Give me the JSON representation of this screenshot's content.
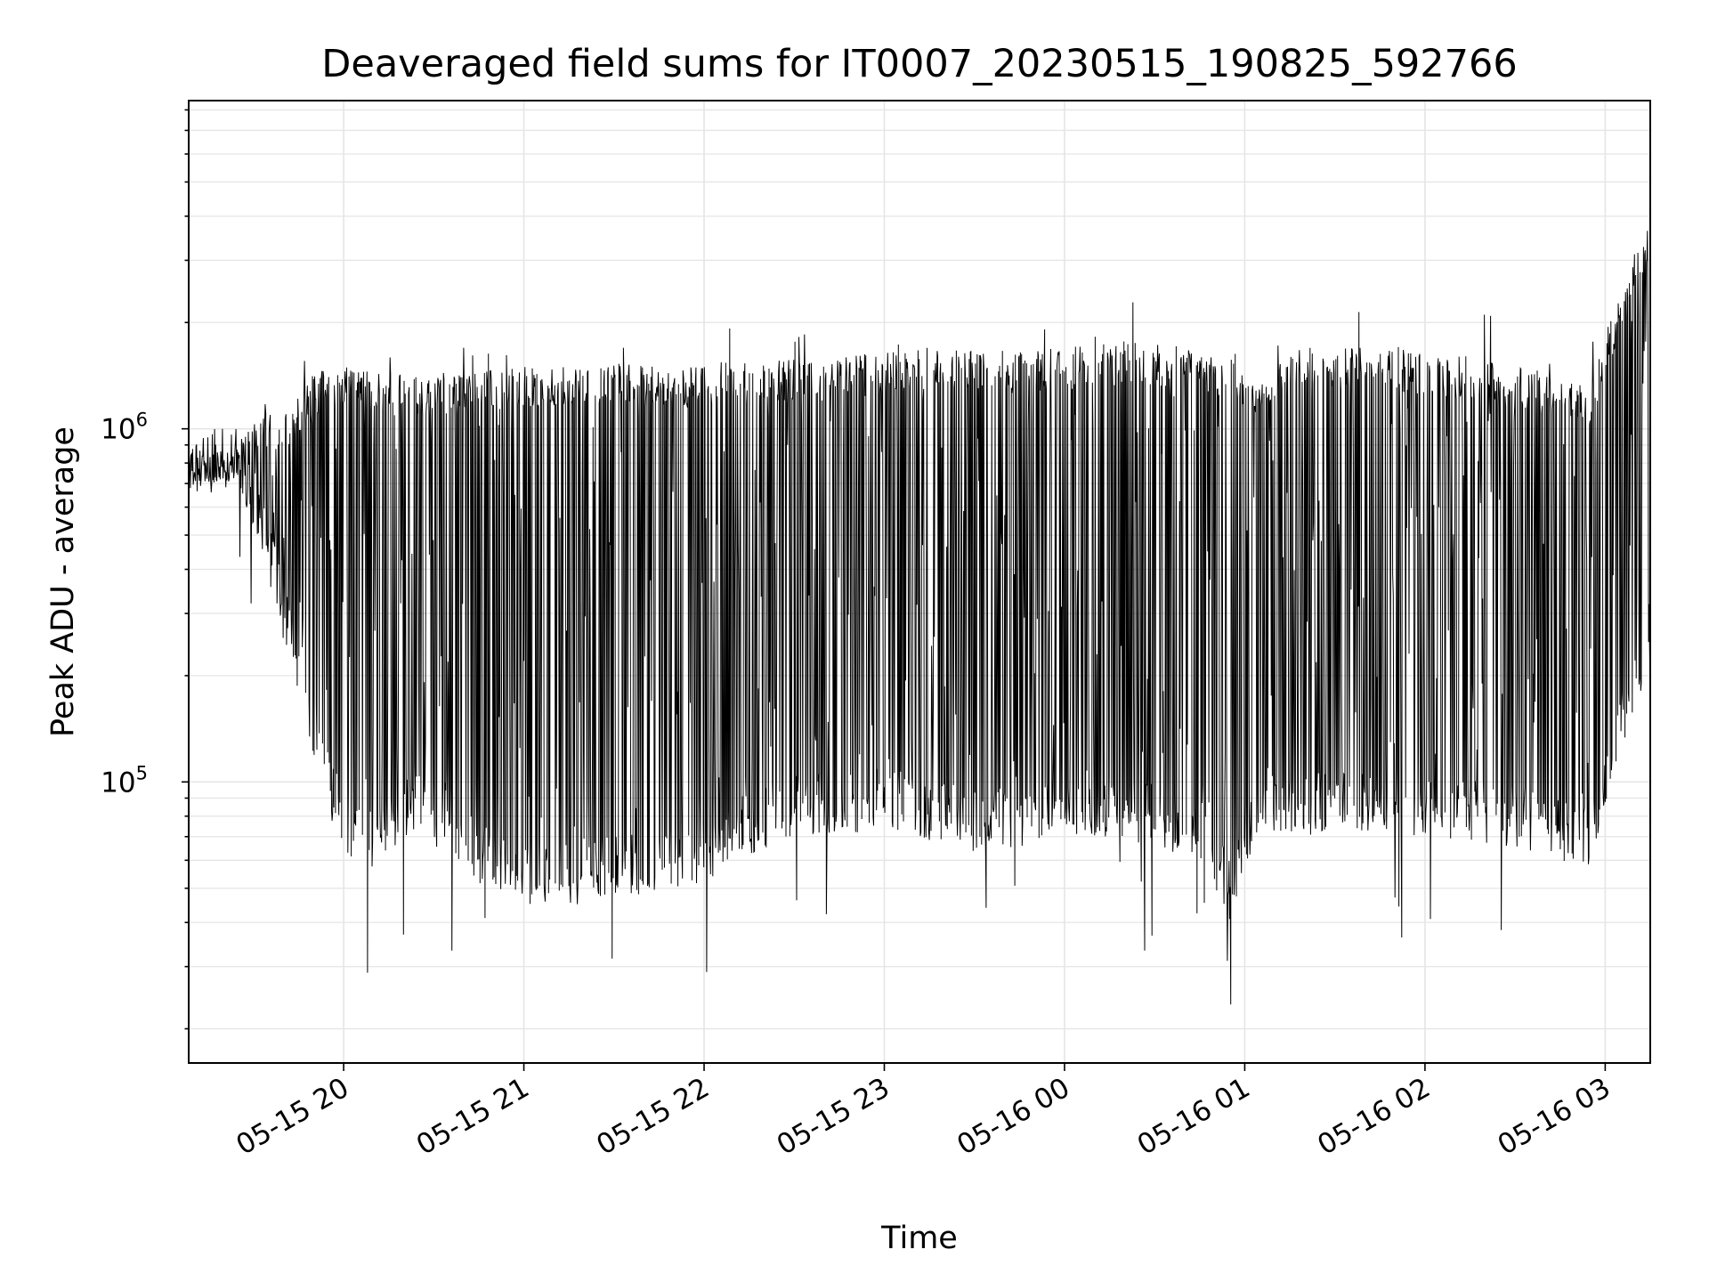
{
  "chart_data": {
    "type": "line",
    "title": "Deaveraged field sums for IT0007_20230515_190825_592766",
    "xlabel": "Time",
    "ylabel": "Peak ADU - average",
    "yscale": "log",
    "ylim": [
      16000,
      8500000
    ],
    "xlim": [
      "2023-05-15 19:08:25",
      "2023-05-16 03:15:00"
    ],
    "x_ticks": [
      {
        "value": "2023-05-15 20:00",
        "label": "05-15 20"
      },
      {
        "value": "2023-05-15 21:00",
        "label": "05-15 21"
      },
      {
        "value": "2023-05-15 22:00",
        "label": "05-15 22"
      },
      {
        "value": "2023-05-15 23:00",
        "label": "05-15 23"
      },
      {
        "value": "2023-05-16 00:00",
        "label": "05-16 00"
      },
      {
        "value": "2023-05-16 01:00",
        "label": "05-16 01"
      },
      {
        "value": "2023-05-16 02:00",
        "label": "05-16 02"
      },
      {
        "value": "2023-05-16 03:00",
        "label": "05-16 03"
      }
    ],
    "y_ticks": [
      {
        "value": 100000,
        "base": "10",
        "exp": "5"
      },
      {
        "value": 1000000,
        "base": "10",
        "exp": "6"
      }
    ],
    "grid": true,
    "line_color": "#000000",
    "grid_color": "#e5e5e5",
    "series": [
      {
        "envelope": {
          "x": [
            "2023-05-15 19:08",
            "2023-05-15 19:15",
            "2023-05-15 19:25",
            "2023-05-15 19:32",
            "2023-05-15 19:40",
            "2023-05-15 19:48",
            "2023-05-15 19:55",
            "2023-05-15 20:05",
            "2023-05-15 20:15",
            "2023-05-15 20:25",
            "2023-05-15 20:35",
            "2023-05-15 20:45",
            "2023-05-15 21:00",
            "2023-05-15 21:15",
            "2023-05-15 21:30",
            "2023-05-15 21:45",
            "2023-05-15 22:00",
            "2023-05-15 22:15",
            "2023-05-15 22:30",
            "2023-05-15 22:45",
            "2023-05-15 23:00",
            "2023-05-15 23:15",
            "2023-05-15 23:30",
            "2023-05-15 23:45",
            "2023-05-16 00:00",
            "2023-05-16 00:15",
            "2023-05-16 00:30",
            "2023-05-16 00:45",
            "2023-05-16 00:55",
            "2023-05-16 01:05",
            "2023-05-16 01:15",
            "2023-05-16 01:30",
            "2023-05-16 01:45",
            "2023-05-16 02:00",
            "2023-05-16 02:15",
            "2023-05-16 02:30",
            "2023-05-16 02:45",
            "2023-05-16 02:55",
            "2023-05-16 03:05",
            "2023-05-16 03:15"
          ],
          "high": [
            900000,
            850000,
            900000,
            1200000,
            1100000,
            1400000,
            1500000,
            1500000,
            1450000,
            1400000,
            1450000,
            1450000,
            1500000,
            1550000,
            1550000,
            1500000,
            1550000,
            1550000,
            1600000,
            1600000,
            1650000,
            1700000,
            1700000,
            1650000,
            1700000,
            1750000,
            1750000,
            1700000,
            1600000,
            1400000,
            1650000,
            1750000,
            1700000,
            1650000,
            1600000,
            1500000,
            1400000,
            1350000,
            2500000,
            4000000
          ],
          "low": [
            650000,
            650000,
            700000,
            450000,
            250000,
            140000,
            80000,
            55000,
            60000,
            75000,
            65000,
            50000,
            45000,
            45000,
            48000,
            48000,
            52000,
            62000,
            70000,
            70000,
            75000,
            65000,
            65000,
            65000,
            70000,
            70000,
            65000,
            60000,
            40000,
            75000,
            70000,
            70000,
            72000,
            70000,
            68000,
            65000,
            60000,
            55000,
            120000,
            200000
          ]
        }
      }
    ]
  }
}
